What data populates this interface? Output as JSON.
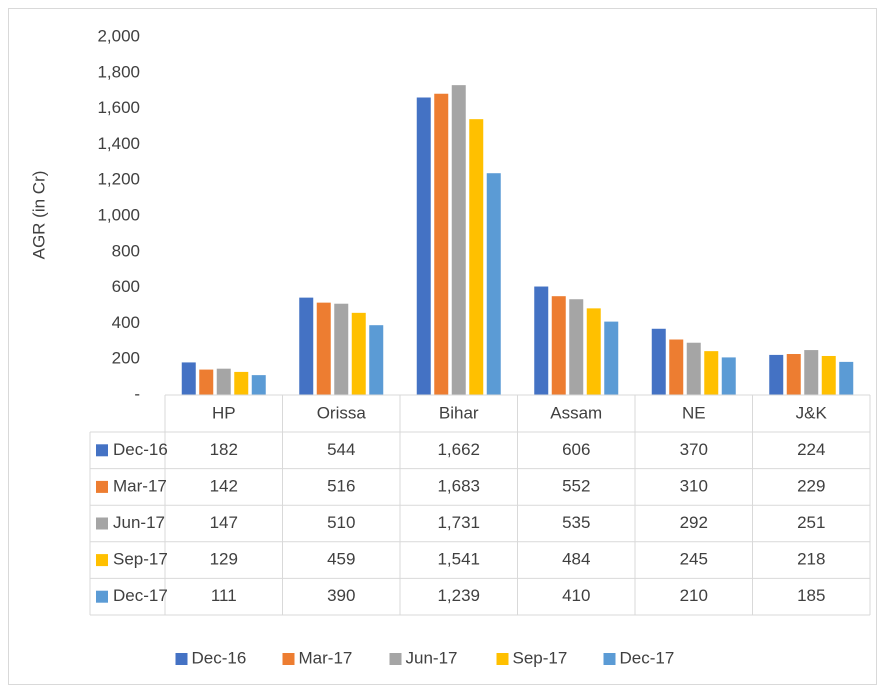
{
  "chart_data": {
    "type": "bar",
    "y_label": "AGR (in Cr)",
    "categories": [
      "HP",
      "Orissa",
      "Bihar",
      "Assam",
      "NE",
      "J&K"
    ],
    "ylim": [
      0,
      2000
    ],
    "yticks": [
      {
        "value": 0,
        "label": "-"
      },
      200,
      400,
      600,
      800,
      {
        "value": 1000,
        "label": "1,000"
      },
      {
        "value": 1200,
        "label": "1,200"
      },
      {
        "value": 1400,
        "label": "1,400"
      },
      {
        "value": 1600,
        "label": "1,600"
      },
      {
        "value": 1800,
        "label": "1,800"
      },
      {
        "value": 2000,
        "label": "2,000"
      }
    ],
    "series": [
      {
        "name": "Dec-16",
        "color": "#4472c4",
        "values": [
          182,
          544,
          1662,
          606,
          370,
          224
        ],
        "value_labels": [
          "182",
          "544",
          "1,662",
          "606",
          "370",
          "224"
        ]
      },
      {
        "name": "Mar-17",
        "color": "#ed7d31",
        "values": [
          142,
          516,
          1683,
          552,
          310,
          229
        ],
        "value_labels": [
          "142",
          "516",
          "1,683",
          "552",
          "310",
          "229"
        ]
      },
      {
        "name": "Jun-17",
        "color": "#a5a5a5",
        "values": [
          147,
          510,
          1731,
          535,
          292,
          251
        ],
        "value_labels": [
          "147",
          "510",
          "1,731",
          "535",
          "292",
          "251"
        ]
      },
      {
        "name": "Sep-17",
        "color": "#ffc000",
        "values": [
          129,
          459,
          1541,
          484,
          245,
          218
        ],
        "value_labels": [
          "129",
          "459",
          "1,541",
          "484",
          "245",
          "218"
        ]
      },
      {
        "name": "Dec-17",
        "color": "#5b9bd5",
        "values": [
          111,
          390,
          1239,
          410,
          210,
          185
        ],
        "value_labels": [
          "111",
          "390",
          "1,239",
          "410",
          "210",
          "185"
        ]
      }
    ],
    "legend": "bottom"
  }
}
